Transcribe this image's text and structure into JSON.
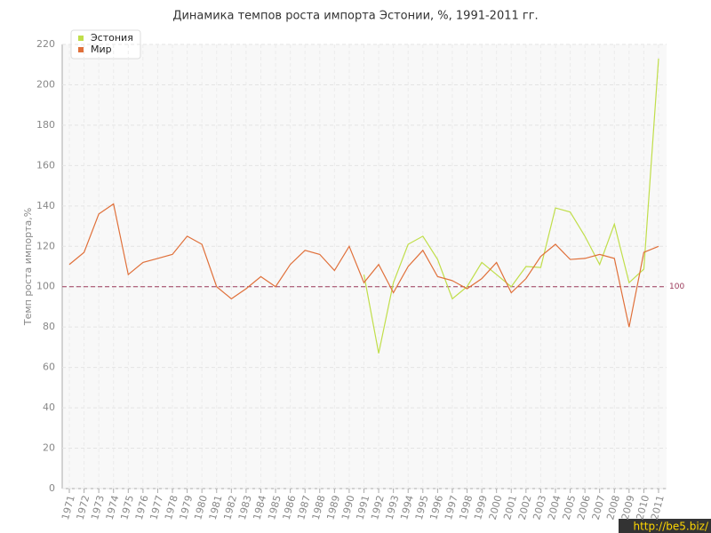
{
  "chart_data": {
    "type": "line",
    "title": "Динамика темпов роста импорта Эстонии, %, 1991-2011 гг.",
    "y_label": "Темп роста импорта,%",
    "categories": [
      "1971",
      "1972",
      "1973",
      "1974",
      "1975",
      "1976",
      "1977",
      "1978",
      "1979",
      "1980",
      "1981",
      "1982",
      "1983",
      "1984",
      "1985",
      "1986",
      "1987",
      "1988",
      "1989",
      "1990",
      "1991",
      "1992",
      "1993",
      "1994",
      "1995",
      "1996",
      "1997",
      "1998",
      "1999",
      "2000",
      "2001",
      "2002",
      "2003",
      "2004",
      "2005",
      "2006",
      "2007",
      "2008",
      "2009",
      "2010",
      "2011"
    ],
    "series": [
      {
        "name": "Эстония",
        "color": "#c0de4a",
        "values": [
          null,
          null,
          null,
          null,
          null,
          null,
          null,
          null,
          null,
          null,
          null,
          null,
          null,
          null,
          null,
          null,
          null,
          null,
          null,
          null,
          106,
          67,
          102,
          121,
          125,
          113.5,
          94,
          100,
          112,
          106,
          100,
          110,
          109.5,
          139,
          137,
          125,
          111,
          131,
          102,
          108.7,
          213
        ]
      },
      {
        "name": "Мир",
        "color": "#e0703a",
        "values": [
          111,
          117,
          136,
          141,
          106,
          112,
          114,
          116,
          125,
          121,
          100,
          94,
          99,
          105,
          100,
          111,
          118,
          116,
          108,
          120,
          102,
          111,
          97,
          110,
          118,
          105,
          103,
          99,
          104,
          112,
          97,
          104,
          115,
          121,
          113.5,
          114,
          116,
          114,
          80,
          117,
          120
        ]
      }
    ],
    "ylim": [
      0,
      220
    ],
    "yticks": [
      0,
      20,
      40,
      60,
      80,
      100,
      120,
      140,
      160,
      180,
      200,
      220
    ],
    "grid": true,
    "legend": "top-left",
    "reference_line": 100,
    "reference_color": "#9b3a5a",
    "watermark": "http://be5.biz/"
  }
}
